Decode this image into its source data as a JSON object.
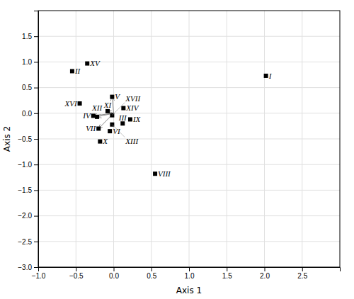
{
  "chart_data": {
    "type": "scatter",
    "xlabel": "Axis 1",
    "ylabel": "Axis 2",
    "xlim": [
      -1,
      3.0
    ],
    "ylim": [
      -3,
      2.0
    ],
    "xticks": [
      {
        "value": -1,
        "label": "−1.0"
      },
      {
        "value": -0.5,
        "label": "−0.5"
      },
      {
        "value": 0,
        "label": "0.0"
      },
      0.5,
      {
        "value": 1,
        "label": "1.0"
      },
      1.5,
      {
        "value": 2,
        "label": "2.0"
      },
      2.5
    ],
    "yticks": [
      {
        "value": -3,
        "label": "−3.0"
      },
      {
        "value": -2.5,
        "label": "−2.5"
      },
      {
        "value": -2,
        "label": "−2.0"
      },
      {
        "value": -1.5,
        "label": "−1.5"
      },
      {
        "value": -1,
        "label": "−1.0"
      },
      {
        "value": -0.5,
        "label": "−0.5"
      },
      {
        "value": 0,
        "label": "0.0"
      },
      0.5,
      {
        "value": 1,
        "label": "1.0"
      },
      1.5
    ],
    "grid": true,
    "series": [
      {
        "type": "arrow",
        "color": "#888888",
        "from": [
          0.0,
          0.0
        ],
        "x": [
          -0.02,
          -0.08,
          -0.27,
          -0.22,
          -0.2
        ],
        "values": [
          0.32,
          0.04,
          -0.05,
          -0.07,
          -0.3
        ]
      },
      {
        "type": "scatter",
        "color": "#000000",
        "marker": "square",
        "x": [
          2.02,
          -0.55,
          0.12,
          -0.27,
          -0.02,
          -0.05,
          -0.2,
          0.55,
          0.22,
          -0.18,
          -0.08,
          -0.22,
          -0.02,
          0.13,
          -0.35,
          -0.45,
          -0.02
        ],
        "values": [
          0.73,
          0.82,
          -0.2,
          -0.05,
          0.32,
          -0.35,
          -0.3,
          -1.18,
          -0.12,
          -0.55,
          0.04,
          -0.07,
          -0.22,
          0.1,
          0.97,
          0.19,
          -0.04
        ],
        "labels": [
          "I",
          "II",
          "III",
          "IV",
          "V",
          "VI",
          "VII",
          "VIII",
          "IX",
          "X",
          "XI",
          "XII",
          "XIII",
          "XIV",
          "XV",
          "XVI",
          "XVII"
        ]
      }
    ]
  }
}
